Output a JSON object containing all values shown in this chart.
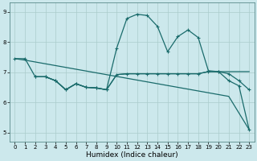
{
  "xlabel": "Humidex (Indice chaleur)",
  "xlim": [
    -0.5,
    23.5
  ],
  "ylim": [
    4.7,
    9.3
  ],
  "xticks": [
    0,
    1,
    2,
    3,
    4,
    5,
    6,
    7,
    8,
    9,
    10,
    11,
    12,
    13,
    14,
    15,
    16,
    17,
    18,
    19,
    20,
    21,
    22,
    23
  ],
  "yticks": [
    5,
    6,
    7,
    8,
    9
  ],
  "bg_color": "#cce8ec",
  "grid_color": "#aacccc",
  "line_color": "#1a6b6b",
  "line_diagonal": {
    "x": [
      0,
      1,
      2,
      3,
      4,
      5,
      6,
      7,
      8,
      9,
      10,
      11,
      12,
      13,
      14,
      15,
      16,
      17,
      18,
      19,
      20,
      21,
      22,
      23
    ],
    "y": [
      7.45,
      7.4,
      7.34,
      7.28,
      7.22,
      7.16,
      7.1,
      7.04,
      6.98,
      6.92,
      6.86,
      6.8,
      6.74,
      6.68,
      6.62,
      6.56,
      6.5,
      6.44,
      6.38,
      6.32,
      6.26,
      6.2,
      5.65,
      5.1
    ],
    "style": "solid",
    "marker": false
  },
  "line_peak": {
    "x": [
      0,
      1,
      2,
      3,
      4,
      5,
      6,
      7,
      8,
      9,
      10,
      11,
      12,
      13,
      14,
      15,
      16,
      17,
      18,
      19,
      20,
      21,
      22,
      23
    ],
    "y": [
      7.45,
      7.45,
      6.85,
      6.85,
      6.72,
      6.42,
      6.62,
      6.5,
      6.48,
      6.42,
      7.8,
      8.78,
      8.92,
      8.88,
      8.52,
      7.68,
      8.18,
      8.4,
      8.15,
      7.05,
      7.02,
      6.72,
      6.55,
      5.1
    ],
    "marker": true
  },
  "line_flat1": {
    "x": [
      2,
      3,
      4,
      5,
      6,
      7,
      8,
      9,
      10,
      11,
      12,
      13,
      14,
      15,
      16,
      17,
      18,
      19,
      20,
      21,
      22,
      23
    ],
    "y": [
      6.85,
      6.85,
      6.72,
      6.42,
      6.62,
      6.5,
      6.48,
      6.42,
      6.92,
      6.95,
      6.95,
      6.95,
      6.95,
      6.95,
      6.95,
      6.95,
      6.95,
      7.02,
      7.02,
      6.95,
      6.72,
      6.42
    ],
    "marker": true
  },
  "line_flat2": {
    "x": [
      2,
      3,
      4,
      5,
      6,
      7,
      8,
      9,
      10,
      11,
      12,
      13,
      14,
      15,
      16,
      17,
      18,
      19,
      20,
      21,
      22,
      23
    ],
    "y": [
      6.85,
      6.85,
      6.72,
      6.42,
      6.62,
      6.5,
      6.48,
      6.42,
      6.92,
      6.95,
      6.95,
      6.95,
      6.95,
      6.95,
      6.95,
      6.95,
      6.95,
      7.02,
      7.02,
      7.02,
      7.02,
      7.02
    ],
    "marker": false
  }
}
